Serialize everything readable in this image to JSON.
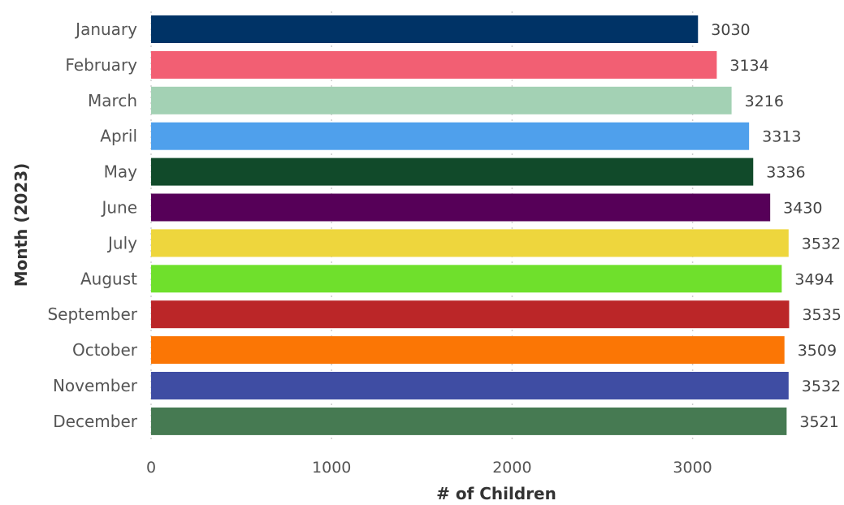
{
  "chart_data": {
    "type": "bar",
    "orientation": "horizontal",
    "categories": [
      "January",
      "February",
      "March",
      "April",
      "May",
      "June",
      "July",
      "August",
      "September",
      "October",
      "November",
      "December"
    ],
    "values": [
      3030,
      3134,
      3216,
      3313,
      3336,
      3430,
      3532,
      3494,
      3535,
      3509,
      3532,
      3521
    ],
    "colors": [
      "#003366",
      "#F25F73",
      "#A3D1B4",
      "#4FA0EC",
      "#114A2A",
      "#560058",
      "#EED63D",
      "#6FE02C",
      "#BB2628",
      "#FB7605",
      "#3F4DA3",
      "#467A52"
    ],
    "xlabel": "# of Children",
    "ylabel": "Month (2023)",
    "xlim": [
      0,
      3800
    ],
    "xticks": [
      0,
      1000,
      2000,
      3000
    ],
    "grid": "vertical-dotted",
    "data_labels": true
  }
}
